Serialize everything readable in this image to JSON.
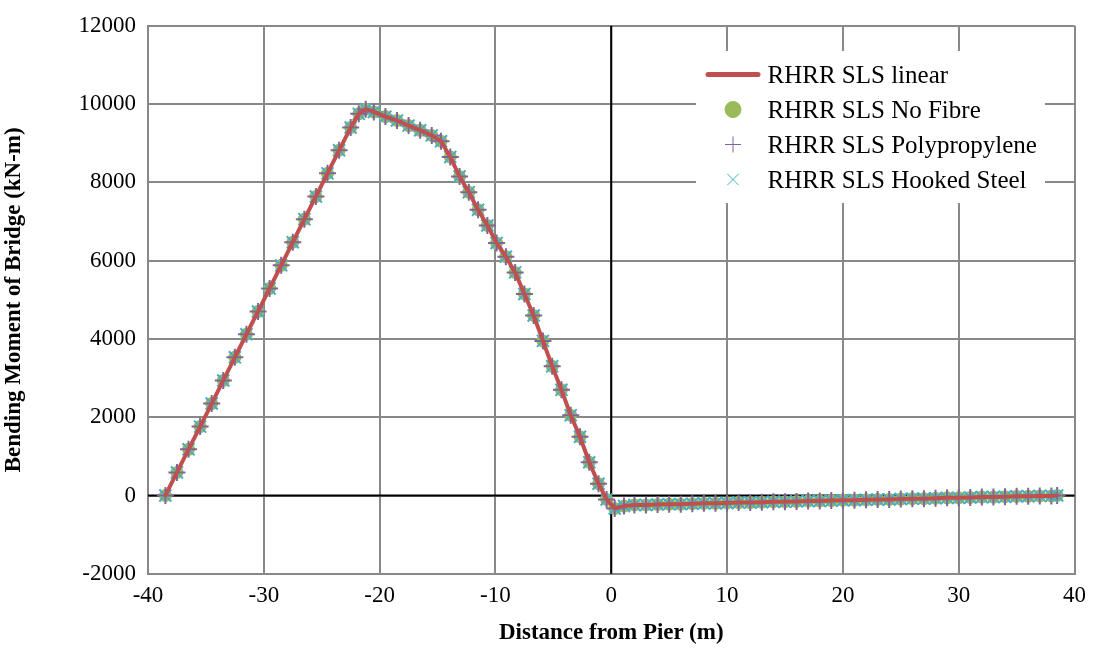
{
  "chart_data": {
    "type": "line",
    "xlabel": "Distance from Pier (m)",
    "ylabel": "Bending Moment of Bridge (kN-m)",
    "x": [
      -38.5,
      -37.5,
      -36.5,
      -35.5,
      -34.5,
      -33.5,
      -32.5,
      -31.5,
      -30.5,
      -29.5,
      -28.5,
      -27.5,
      -26.5,
      -25.5,
      -24.5,
      -23.5,
      -22.5,
      -21.8,
      -21.2,
      -20.5,
      -19.5,
      -18.5,
      -17.5,
      -16.5,
      -15.5,
      -14.7,
      -13.9,
      -13.1,
      -12.3,
      -11.5,
      -10.7,
      -9.9,
      -9.1,
      -8.3,
      -7.5,
      -6.7,
      -5.9,
      -5.1,
      -4.3,
      -3.5,
      -2.7,
      -1.9,
      -1.1,
      -0.4,
      0.3,
      1.1,
      2,
      3,
      4,
      5,
      6,
      7,
      8,
      9,
      10,
      11,
      12,
      13,
      14,
      15,
      16,
      17,
      18,
      19,
      20,
      21,
      22,
      23,
      24,
      25,
      26,
      27,
      28,
      29,
      30,
      31,
      32,
      33,
      34,
      35,
      36,
      37,
      38,
      38.5
    ],
    "series": [
      {
        "name": "RHRR SLS linear",
        "marker": "none",
        "color": "#c0504d",
        "values": [
          0,
          590,
          1180,
          1760,
          2350,
          2940,
          3530,
          4120,
          4700,
          5290,
          5880,
          6470,
          7060,
          7640,
          8230,
          8820,
          9400,
          9750,
          9870,
          9800,
          9680,
          9580,
          9450,
          9330,
          9200,
          9050,
          8650,
          8150,
          7750,
          7300,
          6900,
          6450,
          6100,
          5700,
          5150,
          4600,
          3950,
          3300,
          2700,
          2050,
          1500,
          850,
          300,
          -100,
          -330,
          -270,
          -240,
          -240,
          -230,
          -220,
          -220,
          -210,
          -200,
          -200,
          -190,
          -180,
          -180,
          -170,
          -160,
          -160,
          -150,
          -140,
          -140,
          -130,
          -120,
          -120,
          -110,
          -100,
          -100,
          -90,
          -80,
          -80,
          -70,
          -60,
          -60,
          -50,
          -40,
          -40,
          -30,
          -20,
          -20,
          -10,
          -10,
          0
        ]
      },
      {
        "name": "RHRR SLS No Fibre",
        "type": "scatter",
        "marker": "circle",
        "color": "#9bbb59",
        "values": [
          0,
          590,
          1180,
          1760,
          2350,
          2940,
          3530,
          4120,
          4700,
          5290,
          5880,
          6470,
          7060,
          7640,
          8230,
          8820,
          9400,
          9750,
          9870,
          9800,
          9680,
          9580,
          9450,
          9330,
          9200,
          9050,
          8650,
          8150,
          7750,
          7300,
          6900,
          6450,
          6100,
          5700,
          5150,
          4600,
          3950,
          3300,
          2700,
          2050,
          1500,
          850,
          300,
          -100,
          -330,
          -270,
          -240,
          -240,
          -230,
          -220,
          -220,
          -210,
          -200,
          -200,
          -190,
          -180,
          -180,
          -170,
          -160,
          -160,
          -150,
          -140,
          -140,
          -130,
          -120,
          -120,
          -110,
          -100,
          -100,
          -90,
          -80,
          -80,
          -70,
          -60,
          -60,
          -50,
          -40,
          -40,
          -30,
          -20,
          -20,
          -10,
          -10,
          0
        ]
      },
      {
        "name": "RHRR SLS Polypropylene",
        "type": "scatter",
        "marker": "plus",
        "color": "#8064a2",
        "values": [
          0,
          590,
          1180,
          1760,
          2350,
          2940,
          3530,
          4120,
          4700,
          5290,
          5880,
          6470,
          7060,
          7640,
          8230,
          8820,
          9400,
          9750,
          9870,
          9800,
          9680,
          9580,
          9450,
          9330,
          9200,
          9050,
          8650,
          8150,
          7750,
          7300,
          6900,
          6450,
          6100,
          5700,
          5150,
          4600,
          3950,
          3300,
          2700,
          2050,
          1500,
          850,
          300,
          -100,
          -330,
          -270,
          -240,
          -240,
          -230,
          -220,
          -220,
          -210,
          -200,
          -200,
          -190,
          -180,
          -180,
          -170,
          -160,
          -160,
          -150,
          -140,
          -140,
          -130,
          -120,
          -120,
          -110,
          -100,
          -100,
          -90,
          -80,
          -80,
          -70,
          -60,
          -60,
          -50,
          -40,
          -40,
          -30,
          -20,
          -20,
          -10,
          -10,
          0
        ]
      },
      {
        "name": "RHRR SLS Hooked Steel",
        "type": "scatter",
        "marker": "cross",
        "color": "#4bacc6",
        "values": [
          0,
          590,
          1180,
          1760,
          2350,
          2940,
          3530,
          4120,
          4700,
          5290,
          5880,
          6470,
          7060,
          7640,
          8230,
          8820,
          9400,
          9750,
          9870,
          9800,
          9680,
          9580,
          9450,
          9330,
          9200,
          9050,
          8650,
          8150,
          7750,
          7300,
          6900,
          6450,
          6100,
          5700,
          5150,
          4600,
          3950,
          3300,
          2700,
          2050,
          1500,
          850,
          300,
          -100,
          -330,
          -270,
          -240,
          -240,
          -230,
          -220,
          -220,
          -210,
          -200,
          -200,
          -190,
          -180,
          -180,
          -170,
          -160,
          -160,
          -150,
          -140,
          -140,
          -130,
          -120,
          -120,
          -110,
          -100,
          -100,
          -90,
          -80,
          -80,
          -70,
          -60,
          -60,
          -50,
          -40,
          -40,
          -30,
          -20,
          -20,
          -10,
          -10,
          0
        ]
      }
    ],
    "xlim": [
      -40,
      40
    ],
    "xticks": [
      -40,
      -30,
      -20,
      -10,
      0,
      10,
      20,
      30,
      40
    ],
    "ylim": [
      -2000,
      12000
    ],
    "yticks": [
      -2000,
      0,
      2000,
      4000,
      6000,
      8000,
      10000,
      12000
    ],
    "grid": true,
    "legend": "top right"
  }
}
